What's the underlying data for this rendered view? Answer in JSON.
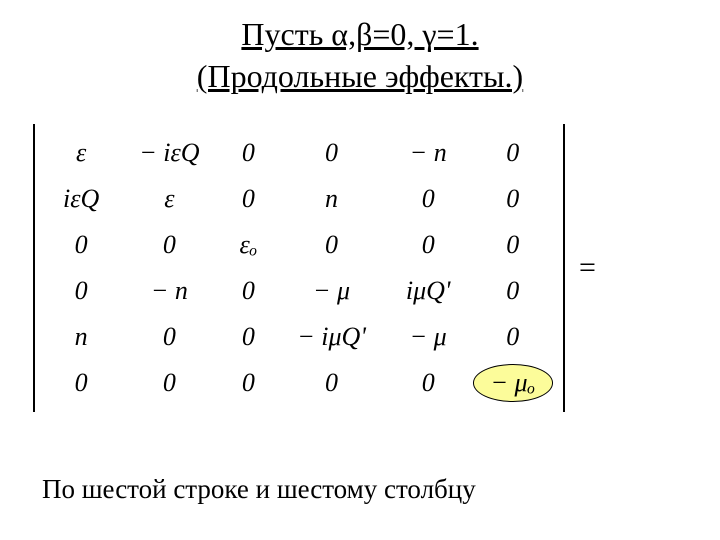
{
  "title_line1": "Пусть α,β=0, γ=1.",
  "title_line2": "(Продольные эффекты.)",
  "matrix": {
    "rows": [
      [
        "ε",
        "− iεQ",
        "0",
        "0",
        "− n",
        "0"
      ],
      [
        "iεQ",
        "ε",
        "0",
        "n",
        "0",
        "0"
      ],
      [
        "0",
        "0",
        "εₒ",
        "0",
        "0",
        "0"
      ],
      [
        "0",
        "− n",
        "0",
        "− μ",
        "iμQ'",
        "0"
      ],
      [
        "n",
        "0",
        "0",
        "− iμQ'",
        "− μ",
        "0"
      ],
      [
        "0",
        "0",
        "0",
        "0",
        "0",
        "− μₒ"
      ]
    ]
  },
  "equals_sign": "=",
  "highlight": {
    "row": 5,
    "col": 5,
    "fill": "#fcfc9a",
    "stroke": "#000000"
  },
  "bottom_text": "По шестой строке и шестому столбцу"
}
